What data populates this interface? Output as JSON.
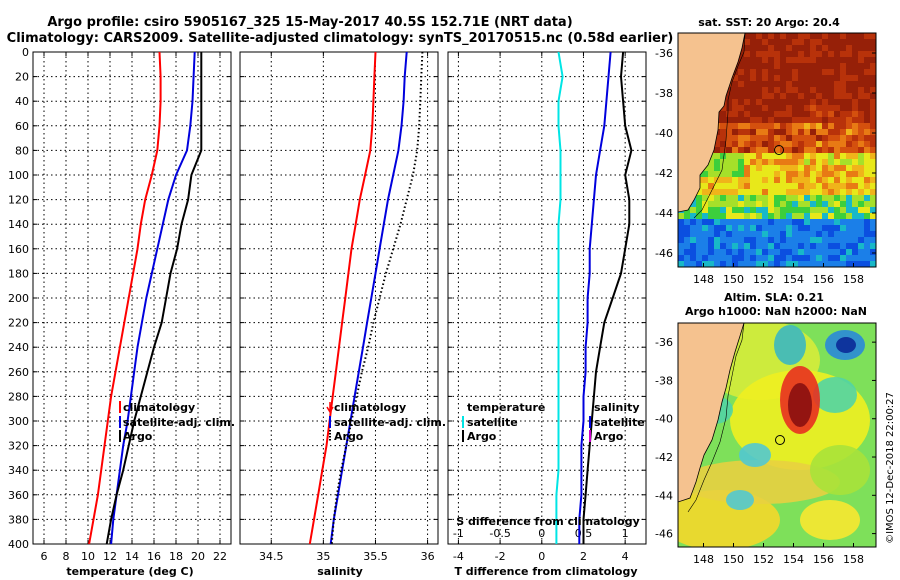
{
  "header": {
    "line1": "Argo profile: csiro 5905167_325 15-May-2017 40.5S 152.71E (NRT data)",
    "line2": "Climatology: CARS2009. Satellite-adjusted climatology: synTS_20170515.nc (0.58d earlier)"
  },
  "credit": "©IMOS 12-Dec-2018 22:00:27",
  "colors": {
    "climatology": "#ff0000",
    "satellite": "#0000dd",
    "argo": "#000000",
    "argo_t_diff": "#00e5e5",
    "argo_s_diff": "#000000",
    "land": "#f5c28f"
  },
  "chart_data": [
    {
      "id": "temperature",
      "type": "line",
      "xlabel": "temperature (deg C)",
      "ylabel": "",
      "xlim": [
        5,
        23
      ],
      "ylim": [
        400,
        0
      ],
      "xticks": [
        6,
        8,
        10,
        12,
        14,
        16,
        18,
        20,
        22
      ],
      "yticks": [
        0,
        20,
        40,
        60,
        80,
        100,
        120,
        140,
        160,
        180,
        200,
        220,
        240,
        260,
        280,
        300,
        320,
        340,
        360,
        380,
        400
      ],
      "legend_position": "right-lower",
      "series": [
        {
          "name": "climatology",
          "color": "#ff0000",
          "style": "solid",
          "x": [
            16.5,
            16.6,
            16.6,
            16.5,
            16.3,
            15.8,
            15.2,
            14.8,
            14.5,
            14.1,
            13.7,
            13.3,
            12.9,
            12.5,
            12.1,
            11.8,
            11.5,
            11.2,
            10.9,
            10.5,
            10.1
          ],
          "y": [
            0,
            20,
            40,
            60,
            80,
            100,
            120,
            140,
            160,
            180,
            200,
            220,
            240,
            260,
            280,
            300,
            320,
            340,
            360,
            380,
            400
          ]
        },
        {
          "name": "satellite-adj. clim.",
          "color": "#0000dd",
          "style": "solid",
          "x": [
            19.7,
            19.6,
            19.5,
            19.3,
            19.0,
            18.0,
            17.3,
            16.8,
            16.3,
            15.8,
            15.3,
            14.9,
            14.5,
            14.2,
            13.9,
            13.6,
            13.2,
            12.9,
            12.6,
            12.3,
            12.1
          ],
          "y": [
            0,
            20,
            40,
            60,
            80,
            100,
            120,
            140,
            160,
            180,
            200,
            220,
            240,
            260,
            280,
            300,
            320,
            340,
            360,
            380,
            400
          ]
        },
        {
          "name": "Argo",
          "color": "#000000",
          "style": "solid",
          "x": [
            20.3,
            20.3,
            20.3,
            20.3,
            20.3,
            19.4,
            19.1,
            18.5,
            18.1,
            17.5,
            17.1,
            16.7,
            16.0,
            15.4,
            14.8,
            14.2,
            13.7,
            13.2,
            12.6,
            12.1,
            11.7
          ],
          "y": [
            0,
            20,
            40,
            60,
            80,
            100,
            120,
            140,
            160,
            180,
            200,
            220,
            240,
            260,
            280,
            300,
            320,
            340,
            360,
            380,
            400
          ]
        }
      ]
    },
    {
      "id": "salinity",
      "type": "line",
      "xlabel": "salinity",
      "xlim": [
        34.2,
        36.1
      ],
      "ylim": [
        400,
        0
      ],
      "xticks": [
        34.5,
        35,
        35.5,
        36
      ],
      "legend_position": "right-lower",
      "series": [
        {
          "name": "climatology",
          "color": "#ff0000",
          "style": "solid",
          "x": [
            35.5,
            35.49,
            35.48,
            35.47,
            35.45,
            35.4,
            35.35,
            35.31,
            35.27,
            35.24,
            35.21,
            35.18,
            35.15,
            35.12,
            35.09,
            35.06,
            35.03,
            34.99,
            34.95,
            34.91,
            34.87
          ],
          "y": [
            0,
            20,
            40,
            60,
            80,
            100,
            120,
            140,
            160,
            180,
            200,
            220,
            240,
            260,
            280,
            300,
            320,
            340,
            360,
            380,
            400
          ]
        },
        {
          "name": "satellite-adj. clim.",
          "color": "#0000dd",
          "style": "solid",
          "x": [
            35.8,
            35.78,
            35.77,
            35.75,
            35.72,
            35.67,
            35.62,
            35.58,
            35.54,
            35.5,
            35.46,
            35.42,
            35.38,
            35.34,
            35.3,
            35.26,
            35.22,
            35.18,
            35.14,
            35.1,
            35.07
          ],
          "y": [
            0,
            20,
            40,
            60,
            80,
            100,
            120,
            140,
            160,
            180,
            200,
            220,
            240,
            260,
            280,
            300,
            320,
            340,
            360,
            380,
            400
          ]
        },
        {
          "name": "Argo",
          "color": "#000000",
          "style": "dotted",
          "x": [
            35.95,
            35.94,
            35.93,
            35.92,
            35.9,
            35.86,
            35.8,
            35.74,
            35.67,
            35.6,
            35.54,
            35.48,
            35.43,
            35.37,
            35.32,
            35.27,
            35.22,
            35.17,
            35.13,
            35.1,
            35.08
          ],
          "y": [
            0,
            20,
            40,
            60,
            80,
            100,
            120,
            140,
            160,
            180,
            200,
            220,
            240,
            260,
            280,
            300,
            320,
            340,
            360,
            380,
            400
          ]
        }
      ]
    },
    {
      "id": "difference",
      "type": "line",
      "xlabel": "T difference from climatology",
      "xlabel2": "S difference from climatology",
      "xlim": [
        -4.5,
        5
      ],
      "ylim": [
        400,
        0
      ],
      "xticks": [
        -4,
        -2,
        0,
        2,
        4
      ],
      "xticks2": [
        -1,
        -0.5,
        0,
        0.5,
        1
      ],
      "xlim2": [
        -1.125,
        1.25
      ],
      "legend_left": {
        "title": "temperature",
        "items": [
          "satellite",
          "Argo"
        ]
      },
      "legend_right": {
        "title": "salinity",
        "items": [
          "satellite",
          "Argo"
        ]
      },
      "series": [
        {
          "name": "Argo T diff",
          "color": "#00e5e5",
          "style": "solid",
          "x": [
            0.8,
            1.0,
            0.8,
            0.8,
            0.9,
            0.9,
            0.9,
            0.8,
            0.8,
            0.8,
            0.8,
            0.8,
            0.8,
            0.8,
            0.8,
            0.8,
            0.8,
            0.8,
            0.7,
            0.7,
            0.7
          ],
          "y": [
            0,
            20,
            40,
            60,
            80,
            100,
            120,
            140,
            160,
            180,
            200,
            220,
            240,
            260,
            280,
            300,
            320,
            340,
            360,
            380,
            400
          ]
        },
        {
          "name": "satellite S diff",
          "color": "#0000dd",
          "style": "solid",
          "x": [
            3.3,
            3.2,
            3.1,
            3.0,
            2.8,
            2.6,
            2.5,
            2.4,
            2.3,
            2.3,
            2.2,
            2.2,
            2.1,
            2.1,
            2.0,
            2.0,
            1.9,
            1.9,
            1.9,
            1.8,
            1.8
          ],
          "y": [
            0,
            20,
            40,
            60,
            80,
            100,
            120,
            140,
            160,
            180,
            200,
            220,
            240,
            260,
            280,
            300,
            320,
            340,
            360,
            380,
            400
          ]
        },
        {
          "name": "Argo S diff",
          "color": "#000000",
          "style": "solid",
          "x": [
            3.9,
            3.8,
            3.9,
            4.0,
            4.3,
            4.0,
            4.2,
            4.2,
            4.0,
            3.8,
            3.4,
            3.0,
            2.8,
            2.6,
            2.5,
            2.4,
            2.3,
            2.2,
            2.1,
            2.0,
            2.0
          ],
          "y": [
            0,
            20,
            40,
            60,
            80,
            100,
            120,
            140,
            160,
            180,
            200,
            220,
            240,
            260,
            280,
            300,
            320,
            340,
            360,
            380,
            400
          ]
        }
      ]
    }
  ],
  "maps": [
    {
      "id": "sst",
      "title": "sat. SST: 20 Argo: 20.4",
      "lat_ticks": [
        "-36",
        "-38",
        "-40",
        "-42",
        "-44",
        "-46"
      ],
      "lon_ticks": [
        "148",
        "150",
        "152",
        "154",
        "156",
        "158"
      ]
    },
    {
      "id": "sla",
      "title1": "Altim. SLA: 0.21",
      "title2": "Argo h1000: NaN h2000: NaN",
      "lat_ticks": [
        "-36",
        "-38",
        "-40",
        "-42",
        "-44",
        "-46"
      ],
      "lon_ticks": [
        "148",
        "150",
        "152",
        "154",
        "156",
        "158"
      ]
    }
  ]
}
